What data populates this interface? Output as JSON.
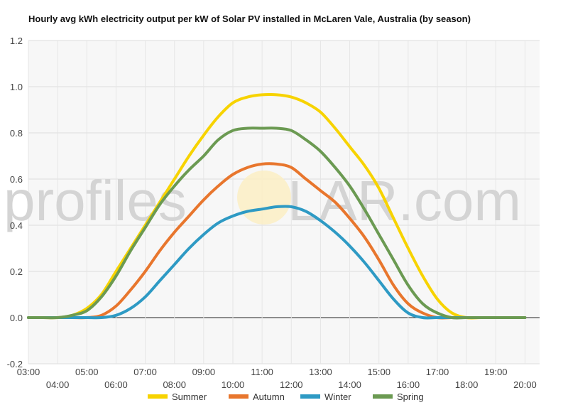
{
  "chart_data": {
    "type": "line",
    "title": "Hourly avg kWh electricity output per kW of Solar PV installed in McLaren Vale, Australia (by season)",
    "watermark": {
      "left": "profiles",
      "right": "LAR.com"
    },
    "xlabel": "",
    "ylabel": "",
    "ylim": [
      -0.2,
      1.2
    ],
    "yticks": [
      -0.2,
      0.0,
      0.2,
      0.4,
      0.6,
      0.8,
      1.0,
      1.2
    ],
    "ytick_labels": [
      "-0.2",
      "0.0",
      "0.2",
      "0.4",
      "0.6",
      "0.8",
      "1.0",
      "1.2"
    ],
    "xlim": [
      3,
      20.5
    ],
    "xticks_row1": [
      {
        "x": 3,
        "label": "03:00"
      },
      {
        "x": 5,
        "label": "05:00"
      },
      {
        "x": 7,
        "label": "07:00"
      },
      {
        "x": 9,
        "label": "09:00"
      },
      {
        "x": 11,
        "label": "11:00"
      },
      {
        "x": 13,
        "label": "13:00"
      },
      {
        "x": 15,
        "label": "15:00"
      },
      {
        "x": 17,
        "label": "17:00"
      },
      {
        "x": 19,
        "label": "19:00"
      }
    ],
    "xticks_row2": [
      {
        "x": 4,
        "label": "04:00"
      },
      {
        "x": 6,
        "label": "06:00"
      },
      {
        "x": 8,
        "label": "08:00"
      },
      {
        "x": 10,
        "label": "10:00"
      },
      {
        "x": 12,
        "label": "12:00"
      },
      {
        "x": 14,
        "label": "14:00"
      },
      {
        "x": 16,
        "label": "16:00"
      },
      {
        "x": 18,
        "label": "18:00"
      },
      {
        "x": 20,
        "label": "20:00"
      }
    ],
    "grid": true,
    "legend_position": "bottom",
    "x": [
      3,
      3.5,
      4,
      4.5,
      5,
      5.5,
      6,
      6.5,
      7,
      7.5,
      8,
      8.5,
      9,
      9.5,
      10,
      10.5,
      11,
      11.5,
      12,
      12.5,
      13,
      13.5,
      14,
      14.5,
      15,
      15.5,
      16,
      16.5,
      17,
      17.5,
      18,
      18.5,
      19,
      19.5,
      20
    ],
    "series": [
      {
        "name": "Summer",
        "color": "#f7d300",
        "values": [
          0,
          0,
          0,
          0.01,
          0.04,
          0.1,
          0.2,
          0.3,
          0.4,
          0.5,
          0.6,
          0.7,
          0.79,
          0.87,
          0.93,
          0.955,
          0.965,
          0.965,
          0.955,
          0.93,
          0.89,
          0.82,
          0.74,
          0.66,
          0.56,
          0.43,
          0.3,
          0.18,
          0.08,
          0.02,
          0,
          0,
          0,
          0,
          0
        ]
      },
      {
        "name": "Autumn",
        "color": "#e8762d",
        "values": [
          0,
          0,
          0,
          0,
          0,
          0.01,
          0.05,
          0.12,
          0.2,
          0.29,
          0.37,
          0.44,
          0.51,
          0.57,
          0.62,
          0.65,
          0.665,
          0.665,
          0.65,
          0.6,
          0.55,
          0.5,
          0.43,
          0.35,
          0.25,
          0.14,
          0.06,
          0.02,
          0,
          0,
          0,
          0,
          0,
          0,
          0
        ]
      },
      {
        "name": "Winter",
        "color": "#2e9ac4",
        "values": [
          0,
          0,
          0,
          0,
          0,
          0,
          0.01,
          0.04,
          0.09,
          0.16,
          0.23,
          0.3,
          0.36,
          0.41,
          0.44,
          0.46,
          0.47,
          0.48,
          0.48,
          0.46,
          0.42,
          0.37,
          0.31,
          0.24,
          0.16,
          0.08,
          0.02,
          0,
          0,
          0,
          0,
          0,
          0,
          0,
          0
        ]
      },
      {
        "name": "Spring",
        "color": "#6b9a52",
        "values": [
          0,
          0,
          0,
          0.01,
          0.03,
          0.09,
          0.18,
          0.29,
          0.39,
          0.49,
          0.57,
          0.64,
          0.7,
          0.77,
          0.81,
          0.82,
          0.82,
          0.82,
          0.81,
          0.77,
          0.72,
          0.65,
          0.57,
          0.47,
          0.36,
          0.25,
          0.14,
          0.06,
          0.02,
          0,
          0,
          0,
          0,
          0,
          0
        ]
      }
    ]
  }
}
